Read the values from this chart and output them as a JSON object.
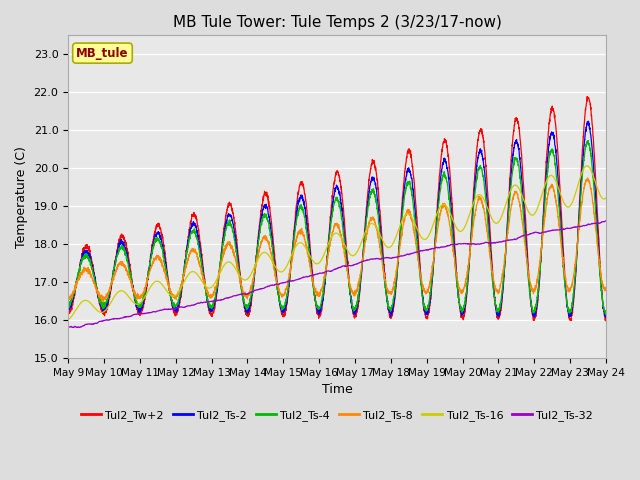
{
  "title": "MB Tule Tower: Tule Temps 2 (3/23/17-now)",
  "xlabel": "Time",
  "ylabel": "Temperature (C)",
  "ylim": [
    15.0,
    23.5
  ],
  "xlim": [
    0,
    15
  ],
  "x_tick_labels": [
    "May 9",
    "May 10",
    "May 11",
    "May 12",
    "May 13",
    "May 14",
    "May 15",
    "May 16",
    "May 17",
    "May 18",
    "May 19",
    "May 20",
    "May 21",
    "May 22",
    "May 23",
    "May 24"
  ],
  "legend_label": "MB_tule",
  "series_names": [
    "Tul2_Tw+2",
    "Tul2_Ts-2",
    "Tul2_Ts-4",
    "Tul2_Ts-8",
    "Tul2_Ts-16",
    "Tul2_Ts-32"
  ],
  "series_colors": [
    "#ff0000",
    "#0000ff",
    "#00bb00",
    "#ff8800",
    "#cccc00",
    "#9900cc"
  ],
  "background_color": "#dddddd",
  "plot_bg_color": "#e8e8e8",
  "title_fontsize": 11,
  "axis_label_fontsize": 9,
  "yticks": [
    15.0,
    16.0,
    17.0,
    18.0,
    19.0,
    20.0,
    21.0,
    22.0,
    23.0
  ],
  "figsize": [
    6.4,
    4.8
  ],
  "dpi": 100
}
